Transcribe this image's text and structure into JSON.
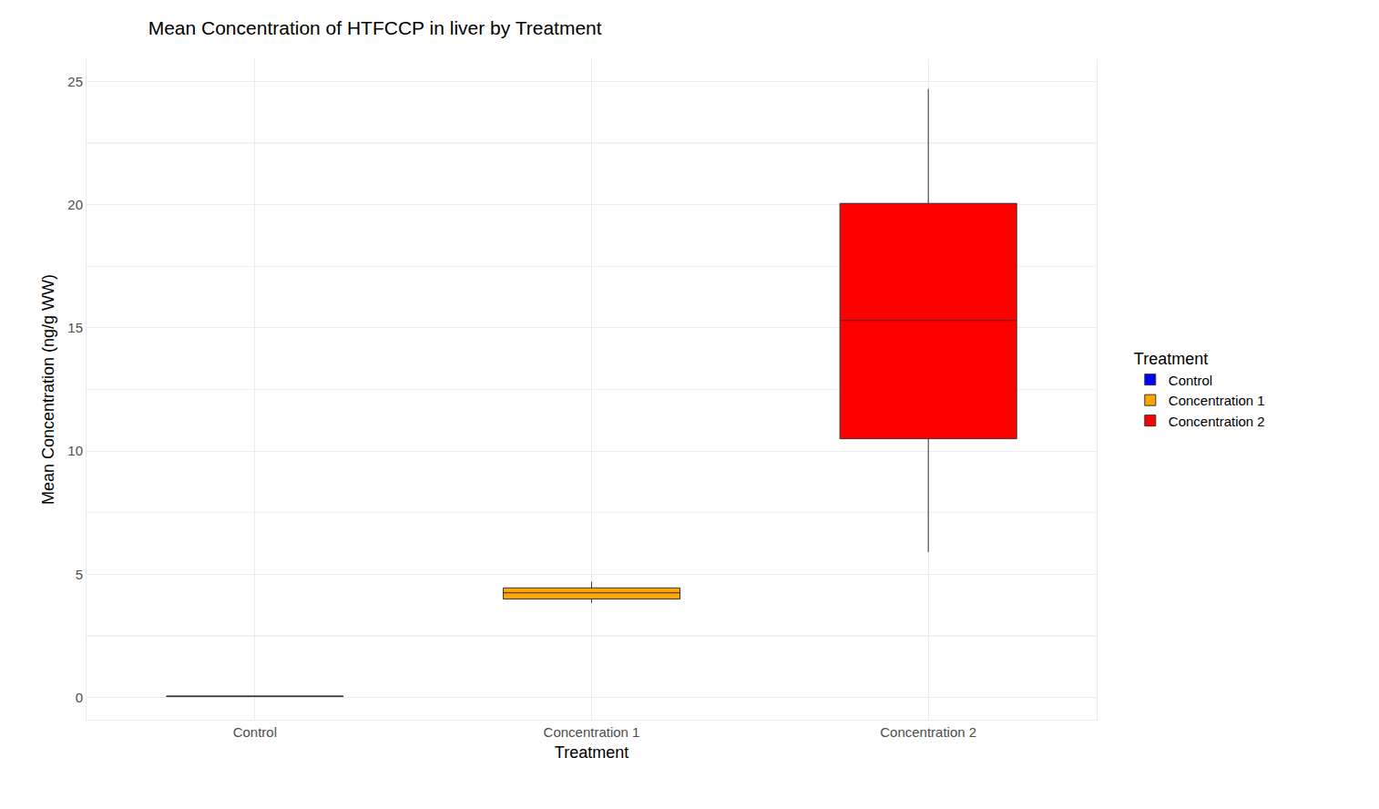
{
  "chart_data": {
    "type": "box",
    "title": "Mean Concentration of HTFCCP in liver by Treatment",
    "x_label": "Treatment",
    "y_label": "Mean Concentration (ng/g WW)",
    "legend_title": "Treatment",
    "legend": "right",
    "grid": true,
    "categories": [
      "Control",
      "Concentration 1",
      "Concentration 2"
    ],
    "series": [
      {
        "name": "Control",
        "color": "#0000ff",
        "min": 0.03,
        "q1": 0.04,
        "median": 0.05,
        "q3": 0.06,
        "max": 0.07
      },
      {
        "name": "Concentration 1",
        "color": "#ffa500",
        "min": 3.85,
        "q1": 4.0,
        "median": 4.25,
        "q3": 4.45,
        "max": 4.7
      },
      {
        "name": "Concentration 2",
        "color": "#ff0000",
        "min": 5.9,
        "q1": 10.5,
        "median": 15.3,
        "q3": 20.05,
        "max": 24.7
      }
    ],
    "ylim": [
      -0.9,
      25.9
    ],
    "yticks": [
      0,
      5,
      10,
      15,
      20,
      25
    ]
  }
}
